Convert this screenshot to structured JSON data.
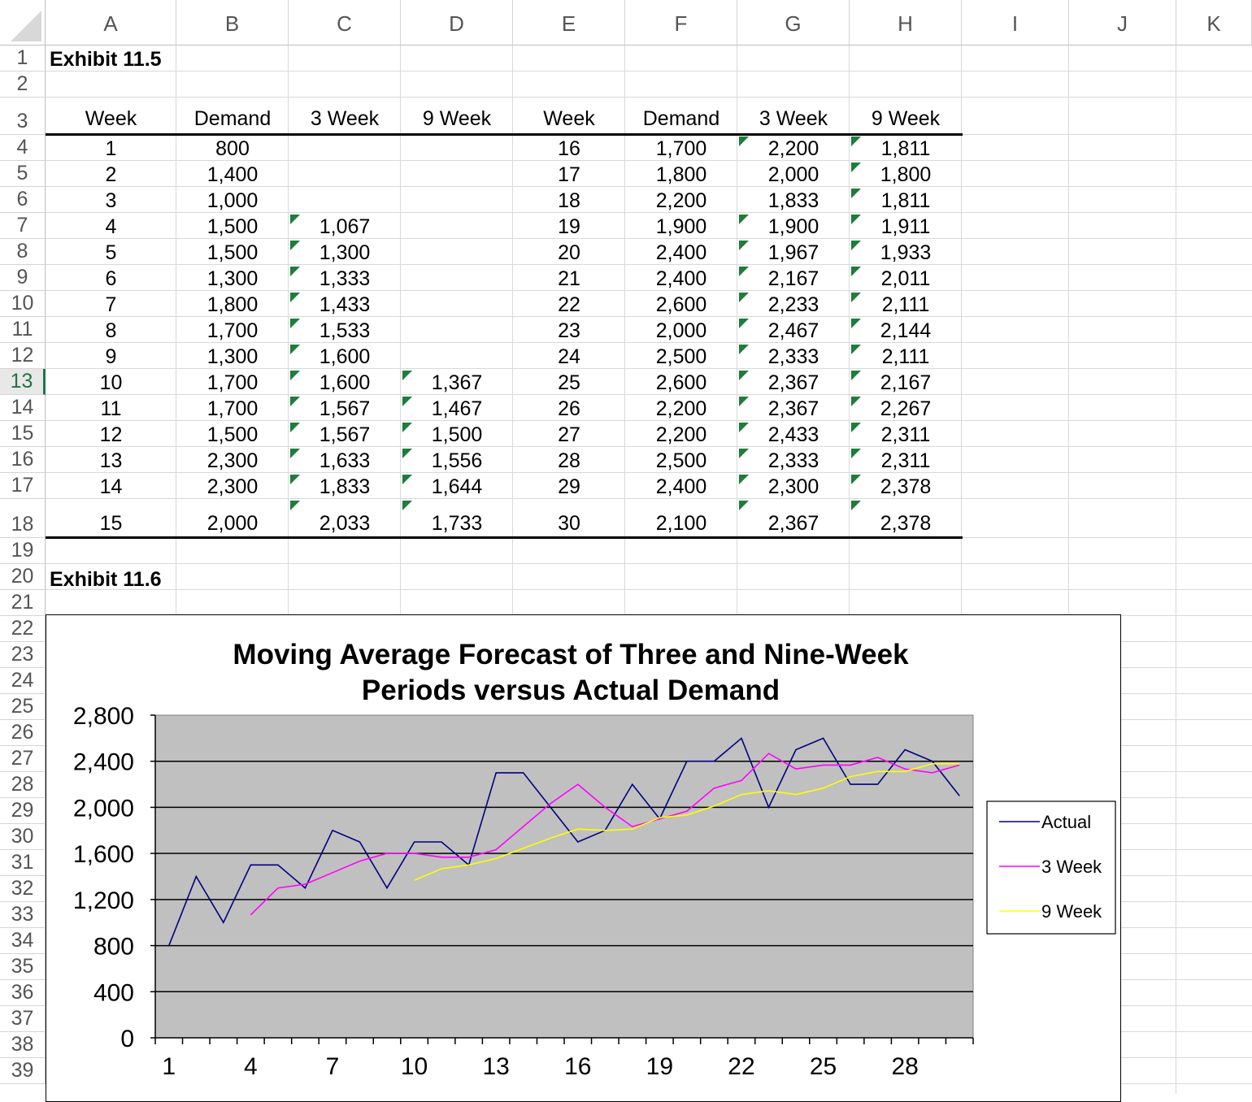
{
  "columns": [
    "A",
    "B",
    "C",
    "D",
    "E",
    "F",
    "G",
    "H",
    "I",
    "J",
    "K"
  ],
  "rows": [
    "1",
    "2",
    "3",
    "4",
    "5",
    "6",
    "7",
    "8",
    "9",
    "10",
    "11",
    "12",
    "13",
    "14",
    "15",
    "16",
    "17",
    "18",
    "19",
    "20",
    "21",
    "22",
    "23",
    "24",
    "25",
    "26",
    "27",
    "28",
    "29",
    "30",
    "31",
    "32",
    "33",
    "34",
    "35",
    "36",
    "37",
    "38",
    "39"
  ],
  "selected_row": "13",
  "exhibit_115": "Exhibit 11.5",
  "exhibit_116": "Exhibit 11.6",
  "headers": [
    "Week",
    "Demand",
    "3 Week",
    "9 Week",
    "Week",
    "Demand",
    "3 Week",
    "9 Week"
  ],
  "table_left": [
    [
      "1",
      "800",
      "",
      ""
    ],
    [
      "2",
      "1,400",
      "",
      ""
    ],
    [
      "3",
      "1,000",
      "",
      ""
    ],
    [
      "4",
      "1,500",
      "1,067",
      ""
    ],
    [
      "5",
      "1,500",
      "1,300",
      ""
    ],
    [
      "6",
      "1,300",
      "1,333",
      ""
    ],
    [
      "7",
      "1,800",
      "1,433",
      ""
    ],
    [
      "8",
      "1,700",
      "1,533",
      ""
    ],
    [
      "9",
      "1,300",
      "1,600",
      ""
    ],
    [
      "10",
      "1,700",
      "1,600",
      "1,367"
    ],
    [
      "11",
      "1,700",
      "1,567",
      "1,467"
    ],
    [
      "12",
      "1,500",
      "1,567",
      "1,500"
    ],
    [
      "13",
      "2,300",
      "1,633",
      "1,556"
    ],
    [
      "14",
      "2,300",
      "1,833",
      "1,644"
    ],
    [
      "15",
      "2,000",
      "2,033",
      "1,733"
    ]
  ],
  "table_right": [
    [
      "16",
      "1,700",
      "2,200",
      "1,811"
    ],
    [
      "17",
      "1,800",
      "2,000",
      "1,800"
    ],
    [
      "18",
      "2,200",
      "1,833",
      "1,811"
    ],
    [
      "19",
      "1,900",
      "1,900",
      "1,911"
    ],
    [
      "20",
      "2,400",
      "1,967",
      "1,933"
    ],
    [
      "21",
      "2,400",
      "2,167",
      "2,011"
    ],
    [
      "22",
      "2,600",
      "2,233",
      "2,111"
    ],
    [
      "23",
      "2,000",
      "2,467",
      "2,144"
    ],
    [
      "24",
      "2,500",
      "2,333",
      "2,111"
    ],
    [
      "25",
      "2,600",
      "2,367",
      "2,167"
    ],
    [
      "26",
      "2,200",
      "2,367",
      "2,267"
    ],
    [
      "27",
      "2,200",
      "2,433",
      "2,311"
    ],
    [
      "28",
      "2,500",
      "2,333",
      "2,311"
    ],
    [
      "29",
      "2,400",
      "2,300",
      "2,378"
    ],
    [
      "30",
      "2,100",
      "2,367",
      "2,378"
    ]
  ],
  "error_indicator_color": "#1e7c3c",
  "chart_data": {
    "type": "line",
    "title": "Moving Average Forecast of Three and Nine-Week Periods versus Actual Demand",
    "title_lines": [
      "Moving Average Forecast of Three and Nine-Week",
      "Periods versus Actual Demand"
    ],
    "x": [
      1,
      2,
      3,
      4,
      5,
      6,
      7,
      8,
      9,
      10,
      11,
      12,
      13,
      14,
      15,
      16,
      17,
      18,
      19,
      20,
      21,
      22,
      23,
      24,
      25,
      26,
      27,
      28,
      29,
      30
    ],
    "x_tick_labels": [
      "1",
      "4",
      "7",
      "10",
      "13",
      "16",
      "19",
      "22",
      "25",
      "28"
    ],
    "y_tick_labels": [
      "2,800",
      "2,400",
      "2,000",
      "1,600",
      "1,200",
      "800",
      "400",
      "0"
    ],
    "ylim": [
      0,
      2800
    ],
    "y_ticks": [
      0,
      400,
      800,
      1200,
      1600,
      2000,
      2400,
      2800
    ],
    "plot_bg": "#c0c0c0",
    "grid": true,
    "legend_position": "right",
    "series": [
      {
        "name": "Actual",
        "color": "#000080",
        "values": [
          800,
          1400,
          1000,
          1500,
          1500,
          1300,
          1800,
          1700,
          1300,
          1700,
          1700,
          1500,
          2300,
          2300,
          2000,
          1700,
          1800,
          2200,
          1900,
          2400,
          2400,
          2600,
          2000,
          2500,
          2600,
          2200,
          2200,
          2500,
          2400,
          2100
        ]
      },
      {
        "name": "3 Week",
        "color": "#ff00ff",
        "values": [
          null,
          null,
          null,
          1067,
          1300,
          1333,
          1433,
          1533,
          1600,
          1600,
          1567,
          1567,
          1633,
          1833,
          2033,
          2200,
          2000,
          1833,
          1900,
          1967,
          2167,
          2233,
          2467,
          2333,
          2367,
          2367,
          2433,
          2333,
          2300,
          2367
        ]
      },
      {
        "name": "9 Week",
        "color": "#ffff00",
        "values": [
          null,
          null,
          null,
          null,
          null,
          null,
          null,
          null,
          null,
          1367,
          1467,
          1500,
          1556,
          1644,
          1733,
          1811,
          1800,
          1811,
          1911,
          1933,
          2011,
          2111,
          2144,
          2111,
          2167,
          2267,
          2311,
          2311,
          2378,
          2378
        ]
      }
    ]
  }
}
